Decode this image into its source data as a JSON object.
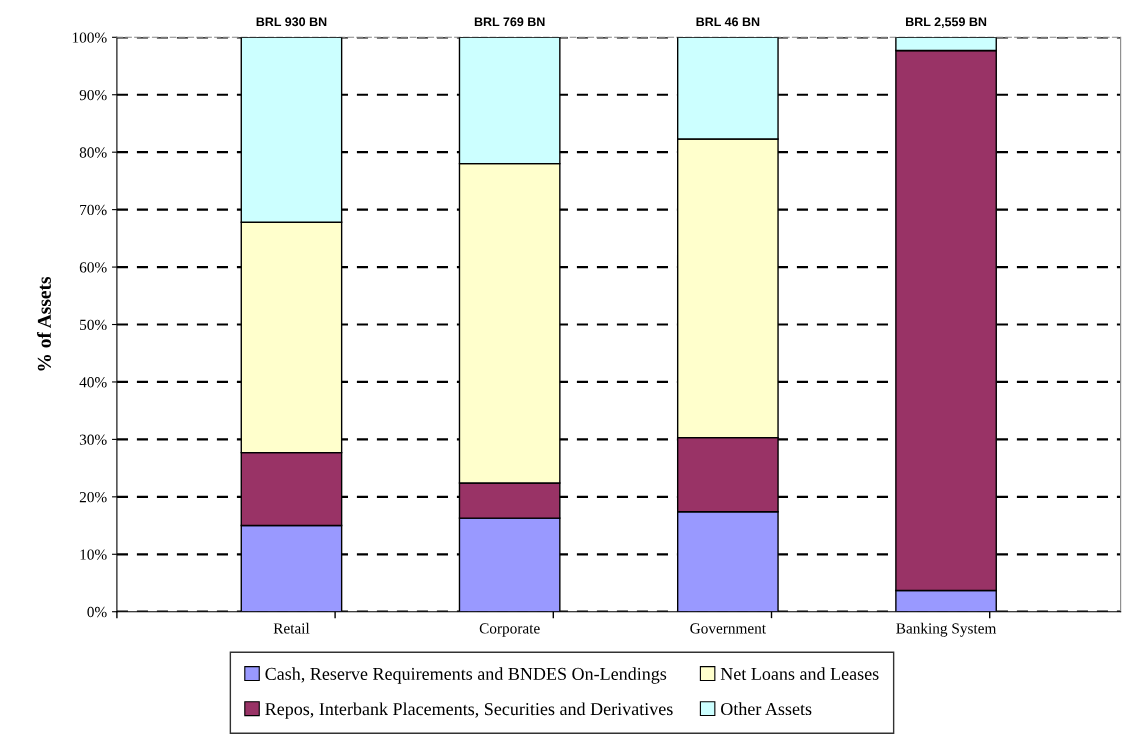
{
  "chart_data": {
    "type": "bar",
    "stacked": true,
    "ylabel": "% of Assets",
    "categories": [
      "Retail",
      "Corporate",
      "Government",
      "Banking System"
    ],
    "series": [
      {
        "name": "Cash, Reserve Requirements and BNDES On-Lendings",
        "color": "#9999ff",
        "values": [
          15,
          16.3,
          17.4,
          3.7
        ]
      },
      {
        "name": "Repos, Interbank Placements, Securities and Derivatives",
        "color": "#993366",
        "values": [
          12.7,
          6.1,
          12.9,
          94
        ]
      },
      {
        "name": "Net Loans and Leases",
        "color": "#ffffcc",
        "values": [
          40.1,
          55.6,
          52,
          0
        ]
      },
      {
        "name": "Other Assets",
        "color": "#ccffff",
        "values": [
          32.2,
          22,
          17.7,
          2.3
        ]
      }
    ],
    "totals": [
      "BRL 930 BN",
      "BRL 769 BN",
      "BRL 46 BN",
      "BRL 2,559 BN"
    ],
    "ylim": [
      0,
      100
    ],
    "yticks": [
      {
        "value": 0,
        "label": "0%"
      },
      {
        "value": 10,
        "label": "10%"
      },
      {
        "value": 20,
        "label": "20%"
      },
      {
        "value": 30,
        "label": "30%"
      },
      {
        "value": 40,
        "label": "40%"
      },
      {
        "value": 50,
        "label": "50%"
      },
      {
        "value": 60,
        "label": "60%"
      },
      {
        "value": 70,
        "label": "70%"
      },
      {
        "value": 80,
        "label": "80%"
      },
      {
        "value": 90,
        "label": "90%"
      },
      {
        "value": 100,
        "label": "100%"
      }
    ],
    "grid": "y",
    "legend": "bottom"
  }
}
